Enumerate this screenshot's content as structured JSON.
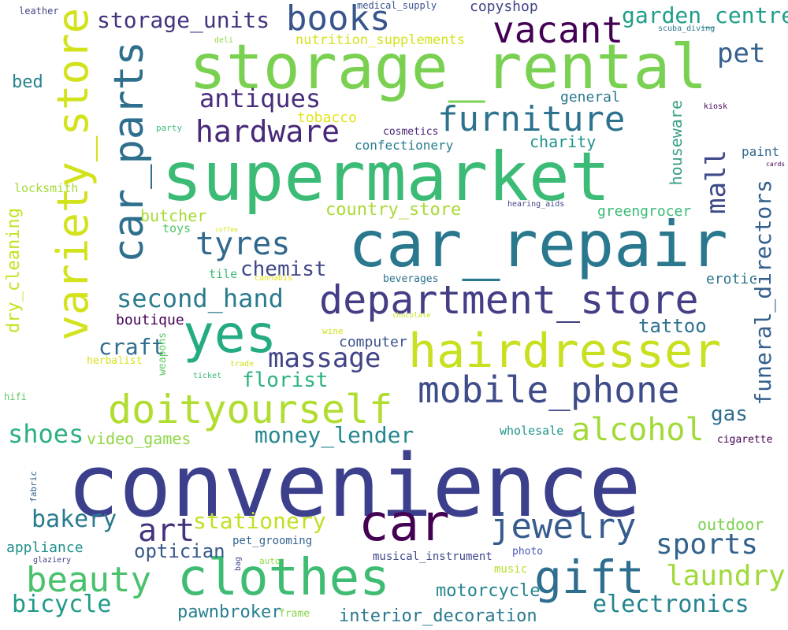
{
  "palette": {
    "deep_purple": "#440154",
    "indigo": "#3b528b",
    "blue": "#31688e",
    "teal": "#21918c",
    "green": "#35b779",
    "lime": "#6ece58",
    "yellow_green": "#b5de2b",
    "yellow": "#d8e219"
  },
  "words": [
    {
      "text": "convenience"
    },
    {
      "text": "storage_rental"
    },
    {
      "text": "supermarket"
    },
    {
      "text": "car_repair"
    },
    {
      "text": "clothes"
    },
    {
      "text": "car"
    },
    {
      "text": "yes"
    },
    {
      "text": "hairdresser"
    },
    {
      "text": "department_store"
    },
    {
      "text": "doityourself"
    },
    {
      "text": "mobile_phone"
    },
    {
      "text": "variety_store"
    },
    {
      "text": "car_parts"
    },
    {
      "text": "gift"
    },
    {
      "text": "jewelry"
    },
    {
      "text": "beauty"
    },
    {
      "text": "furniture"
    },
    {
      "text": "vacant"
    },
    {
      "text": "books"
    },
    {
      "text": "alcohol"
    },
    {
      "text": "hardware"
    },
    {
      "text": "tyres"
    },
    {
      "text": "laundry"
    },
    {
      "text": "sports"
    },
    {
      "text": "electronics"
    },
    {
      "text": "antiques"
    },
    {
      "text": "massage"
    },
    {
      "text": "art"
    },
    {
      "text": "second_hand"
    },
    {
      "text": "bicycle"
    },
    {
      "text": "bakery"
    },
    {
      "text": "shoes"
    },
    {
      "text": "mall"
    },
    {
      "text": "pet"
    },
    {
      "text": "garden_centre"
    },
    {
      "text": "storage_units"
    },
    {
      "text": "money_lender"
    },
    {
      "text": "stationery"
    },
    {
      "text": "funeral_directors"
    },
    {
      "text": "craft"
    },
    {
      "text": "florist"
    },
    {
      "text": "chemist"
    },
    {
      "text": "country_store"
    },
    {
      "text": "optician"
    },
    {
      "text": "pawnbroker"
    },
    {
      "text": "motorcycle"
    },
    {
      "text": "interior_decoration"
    },
    {
      "text": "video_games"
    },
    {
      "text": "tattoo"
    },
    {
      "text": "gas"
    },
    {
      "text": "houseware"
    },
    {
      "text": "dry_cleaning"
    },
    {
      "text": "outdoor"
    },
    {
      "text": "charity"
    },
    {
      "text": "confectionery"
    },
    {
      "text": "computer"
    },
    {
      "text": "greengrocer"
    },
    {
      "text": "butcher"
    },
    {
      "text": "boutique"
    },
    {
      "text": "copyshop"
    },
    {
      "text": "nutrition_supplements"
    },
    {
      "text": "general"
    },
    {
      "text": "bed"
    },
    {
      "text": "tobacco"
    },
    {
      "text": "appliance"
    },
    {
      "text": "erotic"
    },
    {
      "text": "wholesale"
    },
    {
      "text": "paint"
    },
    {
      "text": "locksmith"
    },
    {
      "text": "toys"
    },
    {
      "text": "tile"
    },
    {
      "text": "cosmetics"
    },
    {
      "text": "beverages"
    },
    {
      "text": "musical_instrument"
    },
    {
      "text": "pet_grooming"
    },
    {
      "text": "music"
    },
    {
      "text": "photo"
    },
    {
      "text": "cigarette"
    },
    {
      "text": "herbalist"
    },
    {
      "text": "frame"
    },
    {
      "text": "weapons"
    },
    {
      "text": "medical_supply"
    },
    {
      "text": "leather"
    },
    {
      "text": "deli"
    },
    {
      "text": "scuba_diving"
    },
    {
      "text": "kiosk"
    },
    {
      "text": "party"
    },
    {
      "text": "hearing_aids"
    },
    {
      "text": "wine"
    },
    {
      "text": "fabric"
    },
    {
      "text": "hifi"
    },
    {
      "text": "glaziery"
    },
    {
      "text": "auto"
    },
    {
      "text": "bag"
    },
    {
      "text": "ticket"
    },
    {
      "text": "trade"
    },
    {
      "text": "cannabis"
    },
    {
      "text": "chocolate"
    },
    {
      "text": "coffee"
    },
    {
      "text": "cards"
    }
  ]
}
